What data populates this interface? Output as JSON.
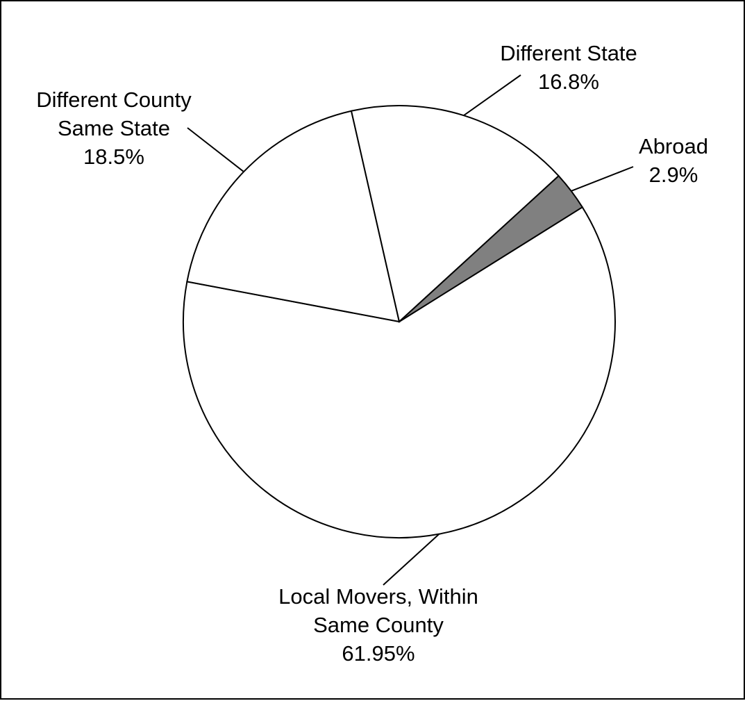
{
  "chart_data": {
    "type": "pie",
    "title": "",
    "slices": [
      {
        "label_lines": [
          "Local Movers, Within",
          "Same County"
        ],
        "value_text": "61.95%",
        "value": 61.95,
        "color": "#ffffff"
      },
      {
        "label_lines": [
          "Different County",
          "Same State"
        ],
        "value_text": "18.5%",
        "value": 18.5,
        "color": "#ffffff"
      },
      {
        "label_lines": [
          "Different State"
        ],
        "value_text": "16.8%",
        "value": 16.8,
        "color": "#ffffff"
      },
      {
        "label_lines": [
          "Abroad"
        ],
        "value_text": "2.9%",
        "value": 2.9,
        "color": "#808080"
      }
    ],
    "legend": "none"
  }
}
